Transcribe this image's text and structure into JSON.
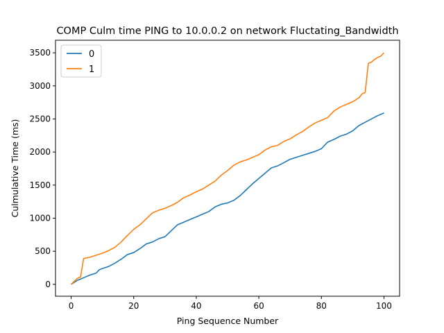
{
  "chart_data": {
    "type": "line",
    "title": "COMP Culm time PING to 10.0.0.2 on network Fluctating_Bandwidth",
    "xlabel": "Ping Sequence Number",
    "ylabel": "Culmulative Time (ms)",
    "xlim": [
      -5,
      105
    ],
    "ylim": [
      -180,
      3690
    ],
    "xticks": [
      0,
      20,
      40,
      60,
      80,
      100
    ],
    "yticks": [
      0,
      500,
      1000,
      1500,
      2000,
      2500,
      3000,
      3500
    ],
    "grid": false,
    "legend_position": "top-left",
    "series": [
      {
        "name": "0",
        "color": "#1f77b4",
        "x": [
          0,
          2,
          4,
          6,
          8,
          9,
          10,
          12,
          14,
          16,
          18,
          20,
          22,
          24,
          26,
          28,
          30,
          32,
          34,
          36,
          38,
          40,
          42,
          44,
          46,
          48,
          50,
          52,
          54,
          56,
          58,
          60,
          62,
          64,
          66,
          68,
          70,
          72,
          74,
          76,
          78,
          80,
          82,
          84,
          86,
          88,
          90,
          92,
          94,
          96,
          98,
          100
        ],
        "y": [
          0,
          60,
          100,
          140,
          170,
          220,
          240,
          270,
          320,
          380,
          450,
          480,
          540,
          610,
          640,
          690,
          720,
          810,
          900,
          940,
          980,
          1020,
          1060,
          1100,
          1170,
          1210,
          1230,
          1270,
          1340,
          1430,
          1520,
          1600,
          1680,
          1760,
          1790,
          1840,
          1890,
          1920,
          1950,
          1980,
          2010,
          2050,
          2150,
          2190,
          2240,
          2270,
          2320,
          2400,
          2450,
          2500,
          2550,
          2590
        ]
      },
      {
        "name": "1",
        "color": "#ff7f0e",
        "x": [
          0,
          2,
          3,
          4,
          6,
          8,
          10,
          12,
          14,
          16,
          18,
          20,
          22,
          24,
          26,
          28,
          30,
          32,
          34,
          36,
          38,
          40,
          42,
          44,
          46,
          48,
          50,
          52,
          54,
          56,
          58,
          60,
          62,
          64,
          66,
          68,
          70,
          72,
          74,
          76,
          78,
          80,
          82,
          84,
          86,
          88,
          90,
          92,
          93,
          94,
          95,
          96,
          97,
          98,
          99,
          100
        ],
        "y": [
          0,
          90,
          110,
          390,
          410,
          440,
          470,
          510,
          560,
          640,
          740,
          830,
          900,
          990,
          1080,
          1120,
          1150,
          1190,
          1240,
          1310,
          1350,
          1400,
          1440,
          1500,
          1560,
          1650,
          1720,
          1800,
          1850,
          1880,
          1920,
          1960,
          2030,
          2080,
          2100,
          2160,
          2200,
          2260,
          2310,
          2380,
          2440,
          2480,
          2520,
          2620,
          2680,
          2720,
          2760,
          2820,
          2880,
          2900,
          3340,
          3360,
          3400,
          3430,
          3450,
          3500
        ]
      }
    ]
  }
}
